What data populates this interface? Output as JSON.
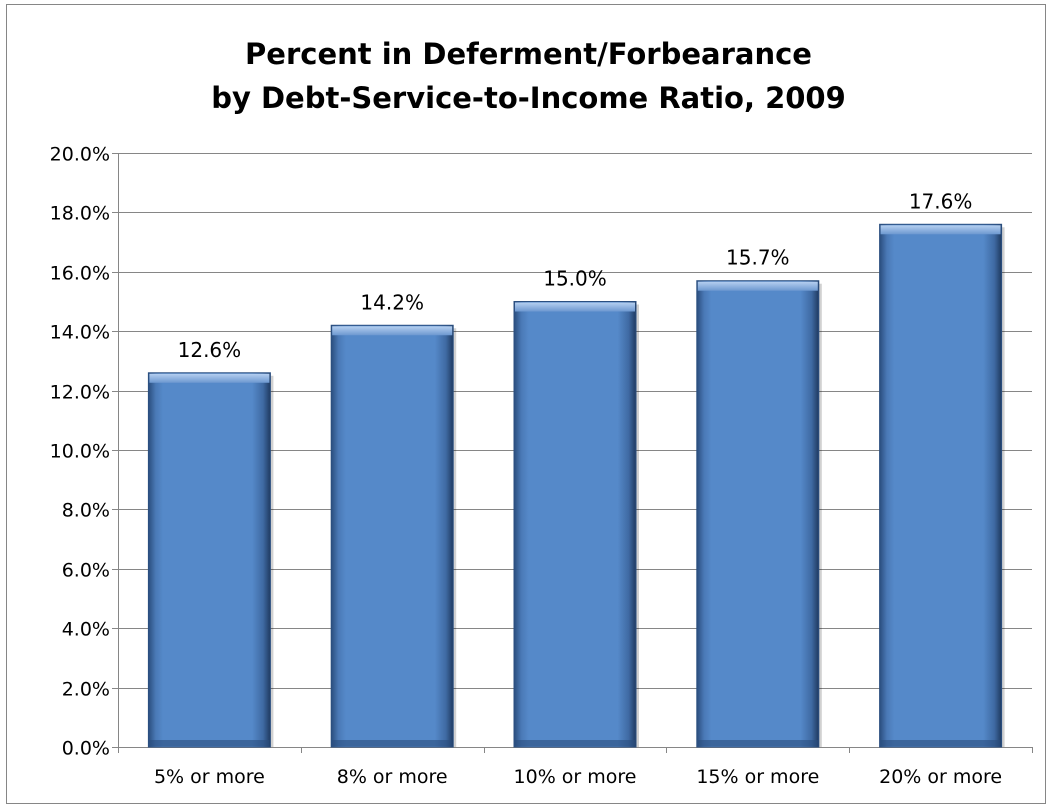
{
  "chart_data": {
    "type": "bar",
    "title_lines": [
      "Percent in Deferment/Forbearance",
      "by Debt-Service-to-Income Ratio, 2009"
    ],
    "categories": [
      "5% or more",
      "8% or more",
      "10% or more",
      "15% or more",
      "20% or more"
    ],
    "values": [
      12.6,
      14.2,
      15.0,
      15.7,
      17.6
    ],
    "data_labels": [
      "12.6%",
      "14.2%",
      "15.0%",
      "15.7%",
      "17.6%"
    ],
    "ylim": [
      0,
      20
    ],
    "yticks": [
      0,
      2,
      4,
      6,
      8,
      10,
      12,
      14,
      16,
      18,
      20
    ],
    "ytick_labels": [
      "0.0%",
      "2.0%",
      "4.0%",
      "6.0%",
      "8.0%",
      "10.0%",
      "12.0%",
      "14.0%",
      "16.0%",
      "18.0%",
      "20.0%"
    ],
    "grid": true,
    "legend": false,
    "colors": {
      "bar": "#4f81bd",
      "bar_light": "#8fb4e3",
      "bar_dark": "#1f3a60",
      "gridline": "#868686",
      "axis": "#868686",
      "text": "#000000"
    }
  }
}
